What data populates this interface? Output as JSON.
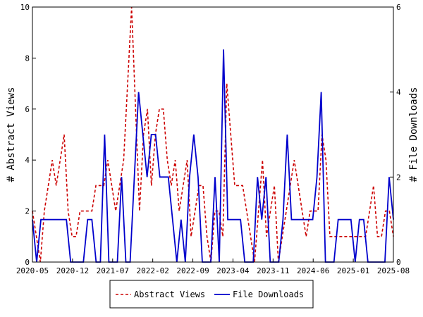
{
  "chart_data": {
    "type": "line",
    "x_ticks": [
      "2020-05",
      "2020-12",
      "2021-07",
      "2022-02",
      "2022-09",
      "2023-04",
      "2023-11",
      "2024-06",
      "2025-01",
      "2025-08"
    ],
    "y_left": {
      "label": "# Abstract Views",
      "range": [
        0,
        10
      ],
      "ticks": [
        "0",
        "2",
        "4",
        "6",
        "8",
        "10"
      ]
    },
    "y_right": {
      "label": "# File Downloads",
      "range": [
        0,
        6
      ],
      "ticks": [
        "0",
        "2",
        "4",
        "6"
      ]
    },
    "grid": false,
    "legend_position": "bottom-center",
    "series": [
      {
        "name": "Abstract Views",
        "axis": "left",
        "color": "#cc0000",
        "style": "dashed",
        "values": [
          2,
          1,
          0,
          2,
          3,
          4,
          3,
          4,
          5,
          2,
          1,
          1,
          2,
          2,
          2,
          2,
          3,
          3,
          3,
          4,
          3,
          2,
          3,
          4,
          7,
          10,
          6,
          2,
          5,
          6,
          3,
          5,
          6,
          6,
          4,
          3,
          4,
          2,
          3,
          4,
          1,
          2,
          3,
          3,
          1,
          0,
          2,
          2,
          1,
          7,
          5,
          3,
          3,
          3,
          2,
          1,
          0,
          2,
          4,
          1,
          2,
          3,
          0,
          1,
          2,
          3,
          4,
          3,
          2,
          1,
          2,
          2,
          2,
          5,
          4,
          1,
          1,
          1,
          1,
          1,
          1,
          1,
          1,
          1,
          1,
          2,
          3,
          1,
          1,
          2,
          2,
          1
        ]
      },
      {
        "name": "File Downloads",
        "axis": "right",
        "color": "#0000cc",
        "style": "solid",
        "values": [
          1,
          0,
          1,
          1,
          1,
          1,
          1,
          1,
          1,
          0,
          0,
          0,
          0,
          1,
          1,
          0,
          0,
          3,
          0,
          0,
          0,
          2,
          0,
          0,
          2,
          4,
          3,
          2,
          3,
          3,
          2,
          2,
          2,
          1,
          0,
          1,
          0,
          2,
          3,
          2,
          0,
          0,
          0,
          2,
          0,
          5,
          1,
          1,
          1,
          1,
          0,
          0,
          0,
          2,
          1,
          2,
          0,
          0,
          0,
          1,
          3,
          1,
          1,
          1,
          1,
          1,
          1,
          2,
          4,
          0,
          0,
          0,
          1,
          1,
          1,
          1,
          0,
          1,
          1,
          0,
          0,
          0,
          0,
          0,
          2,
          1
        ]
      }
    ]
  }
}
